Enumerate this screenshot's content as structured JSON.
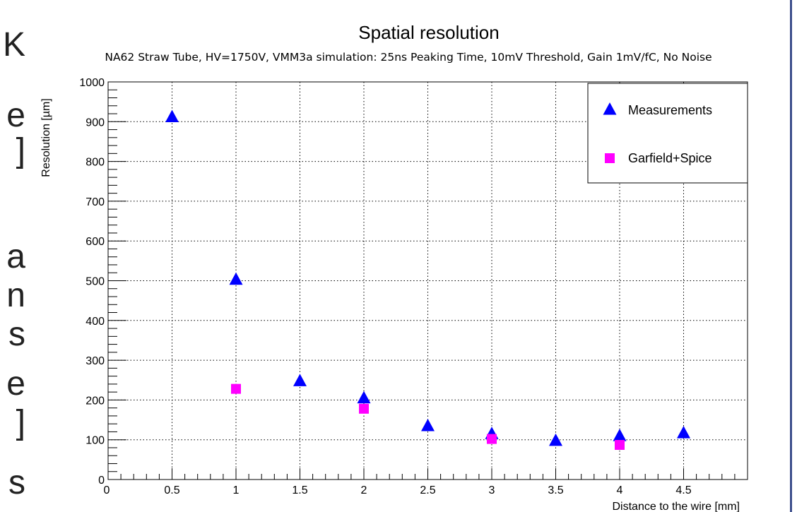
{
  "left_text": [
    "K",
    "e",
    "]",
    "a",
    "n",
    "s",
    "e",
    "]",
    "s"
  ],
  "colors": {
    "border": "#3d4f8c",
    "grid": "#000000"
  },
  "chart_data": {
    "type": "scatter",
    "title": "Spatial resolution",
    "subtitle": "NA62 Straw Tube, HV=1750V, VMM3a simulation: 25ns Peaking Time, 10mV Threshold, Gain 1mV/fC, No Noise",
    "xlabel": "Distance to the wire [mm]",
    "ylabel": "Resolution [µm]",
    "xlim": [
      0,
      5
    ],
    "ylim": [
      0,
      1000
    ],
    "x_ticks": [
      "0",
      "0.5",
      "1",
      "1.5",
      "2",
      "2.5",
      "3",
      "3.5",
      "4",
      "4.5"
    ],
    "y_ticks": [
      "0",
      "100",
      "200",
      "300",
      "400",
      "500",
      "600",
      "700",
      "800",
      "900",
      "1000"
    ],
    "grid": true,
    "legend_position": "top-right",
    "series": [
      {
        "name": "Measurements",
        "marker": "triangle",
        "color": "#0000ff",
        "x": [
          0.5,
          1,
          1.5,
          2,
          2.5,
          3,
          3.5,
          4,
          4.5
        ],
        "y": [
          912,
          503,
          248,
          205,
          135,
          115,
          98,
          110,
          117
        ]
      },
      {
        "name": "Garfield+Spice",
        "marker": "square",
        "color": "#ff00ff",
        "x": [
          1,
          2,
          3,
          4
        ],
        "y": [
          228,
          178,
          102,
          87
        ]
      }
    ]
  }
}
